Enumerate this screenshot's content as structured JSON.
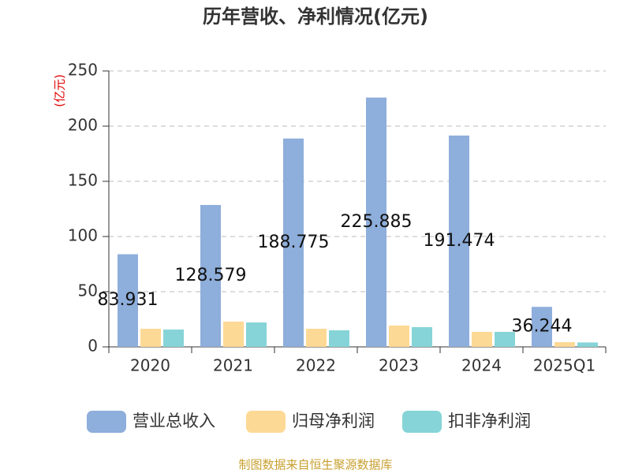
{
  "chart_data": {
    "type": "bar",
    "title": "历年营收、净利情况(亿元)",
    "y_label": "(亿元)",
    "categories": [
      "2020",
      "2021",
      "2022",
      "2023",
      "2024",
      "2025Q1"
    ],
    "series": [
      {
        "name": "营业总收入",
        "color": "#8eaedb",
        "values": [
          83.931,
          128.579,
          188.775,
          225.885,
          191.474,
          36.244
        ],
        "show_labels": true
      },
      {
        "name": "归母净利润",
        "color": "#fdd996",
        "values": [
          16.4,
          22.9,
          16.4,
          19.3,
          13.6,
          4.3
        ]
      },
      {
        "name": "扣非净利润",
        "color": "#86d4d7",
        "values": [
          15.7,
          22.1,
          15.0,
          17.9,
          13.6,
          4.0
        ]
      }
    ],
    "ylim": [
      0,
      250
    ],
    "yticks": [
      0,
      50,
      100,
      150,
      200,
      250
    ],
    "grid": true,
    "source": "制图数据来自恒生聚源数据库"
  }
}
